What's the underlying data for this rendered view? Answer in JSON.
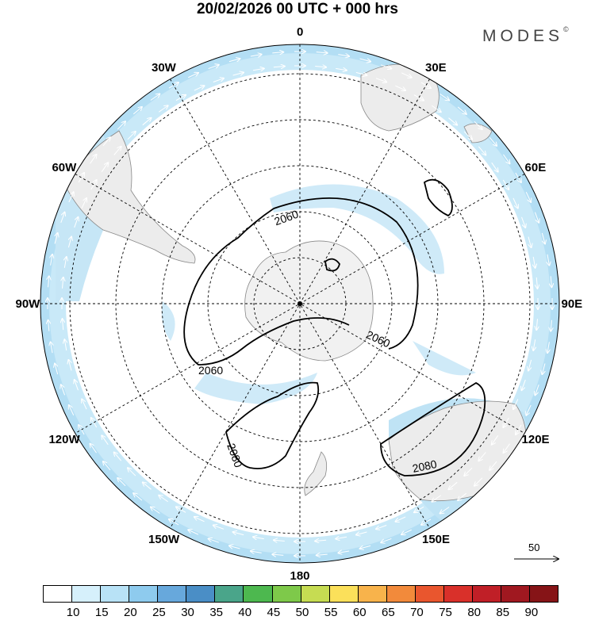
{
  "title": "20/02/2026  00 UTC  + 000 hrs",
  "brand": {
    "text": "MODES",
    "mark": "©"
  },
  "meridian_labels": [
    {
      "text": "0",
      "lon": 0
    },
    {
      "text": "30E",
      "lon": 30
    },
    {
      "text": "60E",
      "lon": 60
    },
    {
      "text": "90E",
      "lon": 90
    },
    {
      "text": "120E",
      "lon": 120
    },
    {
      "text": "150E",
      "lon": 150
    },
    {
      "text": "180",
      "lon": 180
    },
    {
      "text": "150W",
      "lon": -150
    },
    {
      "text": "120W",
      "lon": -120
    },
    {
      "text": "90W",
      "lon": -90
    },
    {
      "text": "60W",
      "lon": -60
    },
    {
      "text": "30W",
      "lon": -30
    }
  ],
  "contour_labels": [
    {
      "text": "2060"
    },
    {
      "text": "2060"
    },
    {
      "text": "2060"
    },
    {
      "text": "2080"
    },
    {
      "text": "2080"
    }
  ],
  "vector_reference": {
    "value": "50"
  },
  "colorbar": {
    "labels": [
      "10",
      "15",
      "20",
      "25",
      "30",
      "35",
      "40",
      "45",
      "50",
      "55",
      "60",
      "65",
      "70",
      "75",
      "80",
      "85",
      "90"
    ],
    "colors": [
      "#ffffff",
      "#d6f0fb",
      "#b8e2f6",
      "#8ecbee",
      "#67a8dc",
      "#4a8ec6",
      "#4aa58a",
      "#4db84f",
      "#7ec94a",
      "#c6dc52",
      "#fbe05a",
      "#f8b34b",
      "#f28a3b",
      "#e9562e",
      "#d9302a",
      "#c01f27",
      "#a01820",
      "#861417"
    ]
  }
}
